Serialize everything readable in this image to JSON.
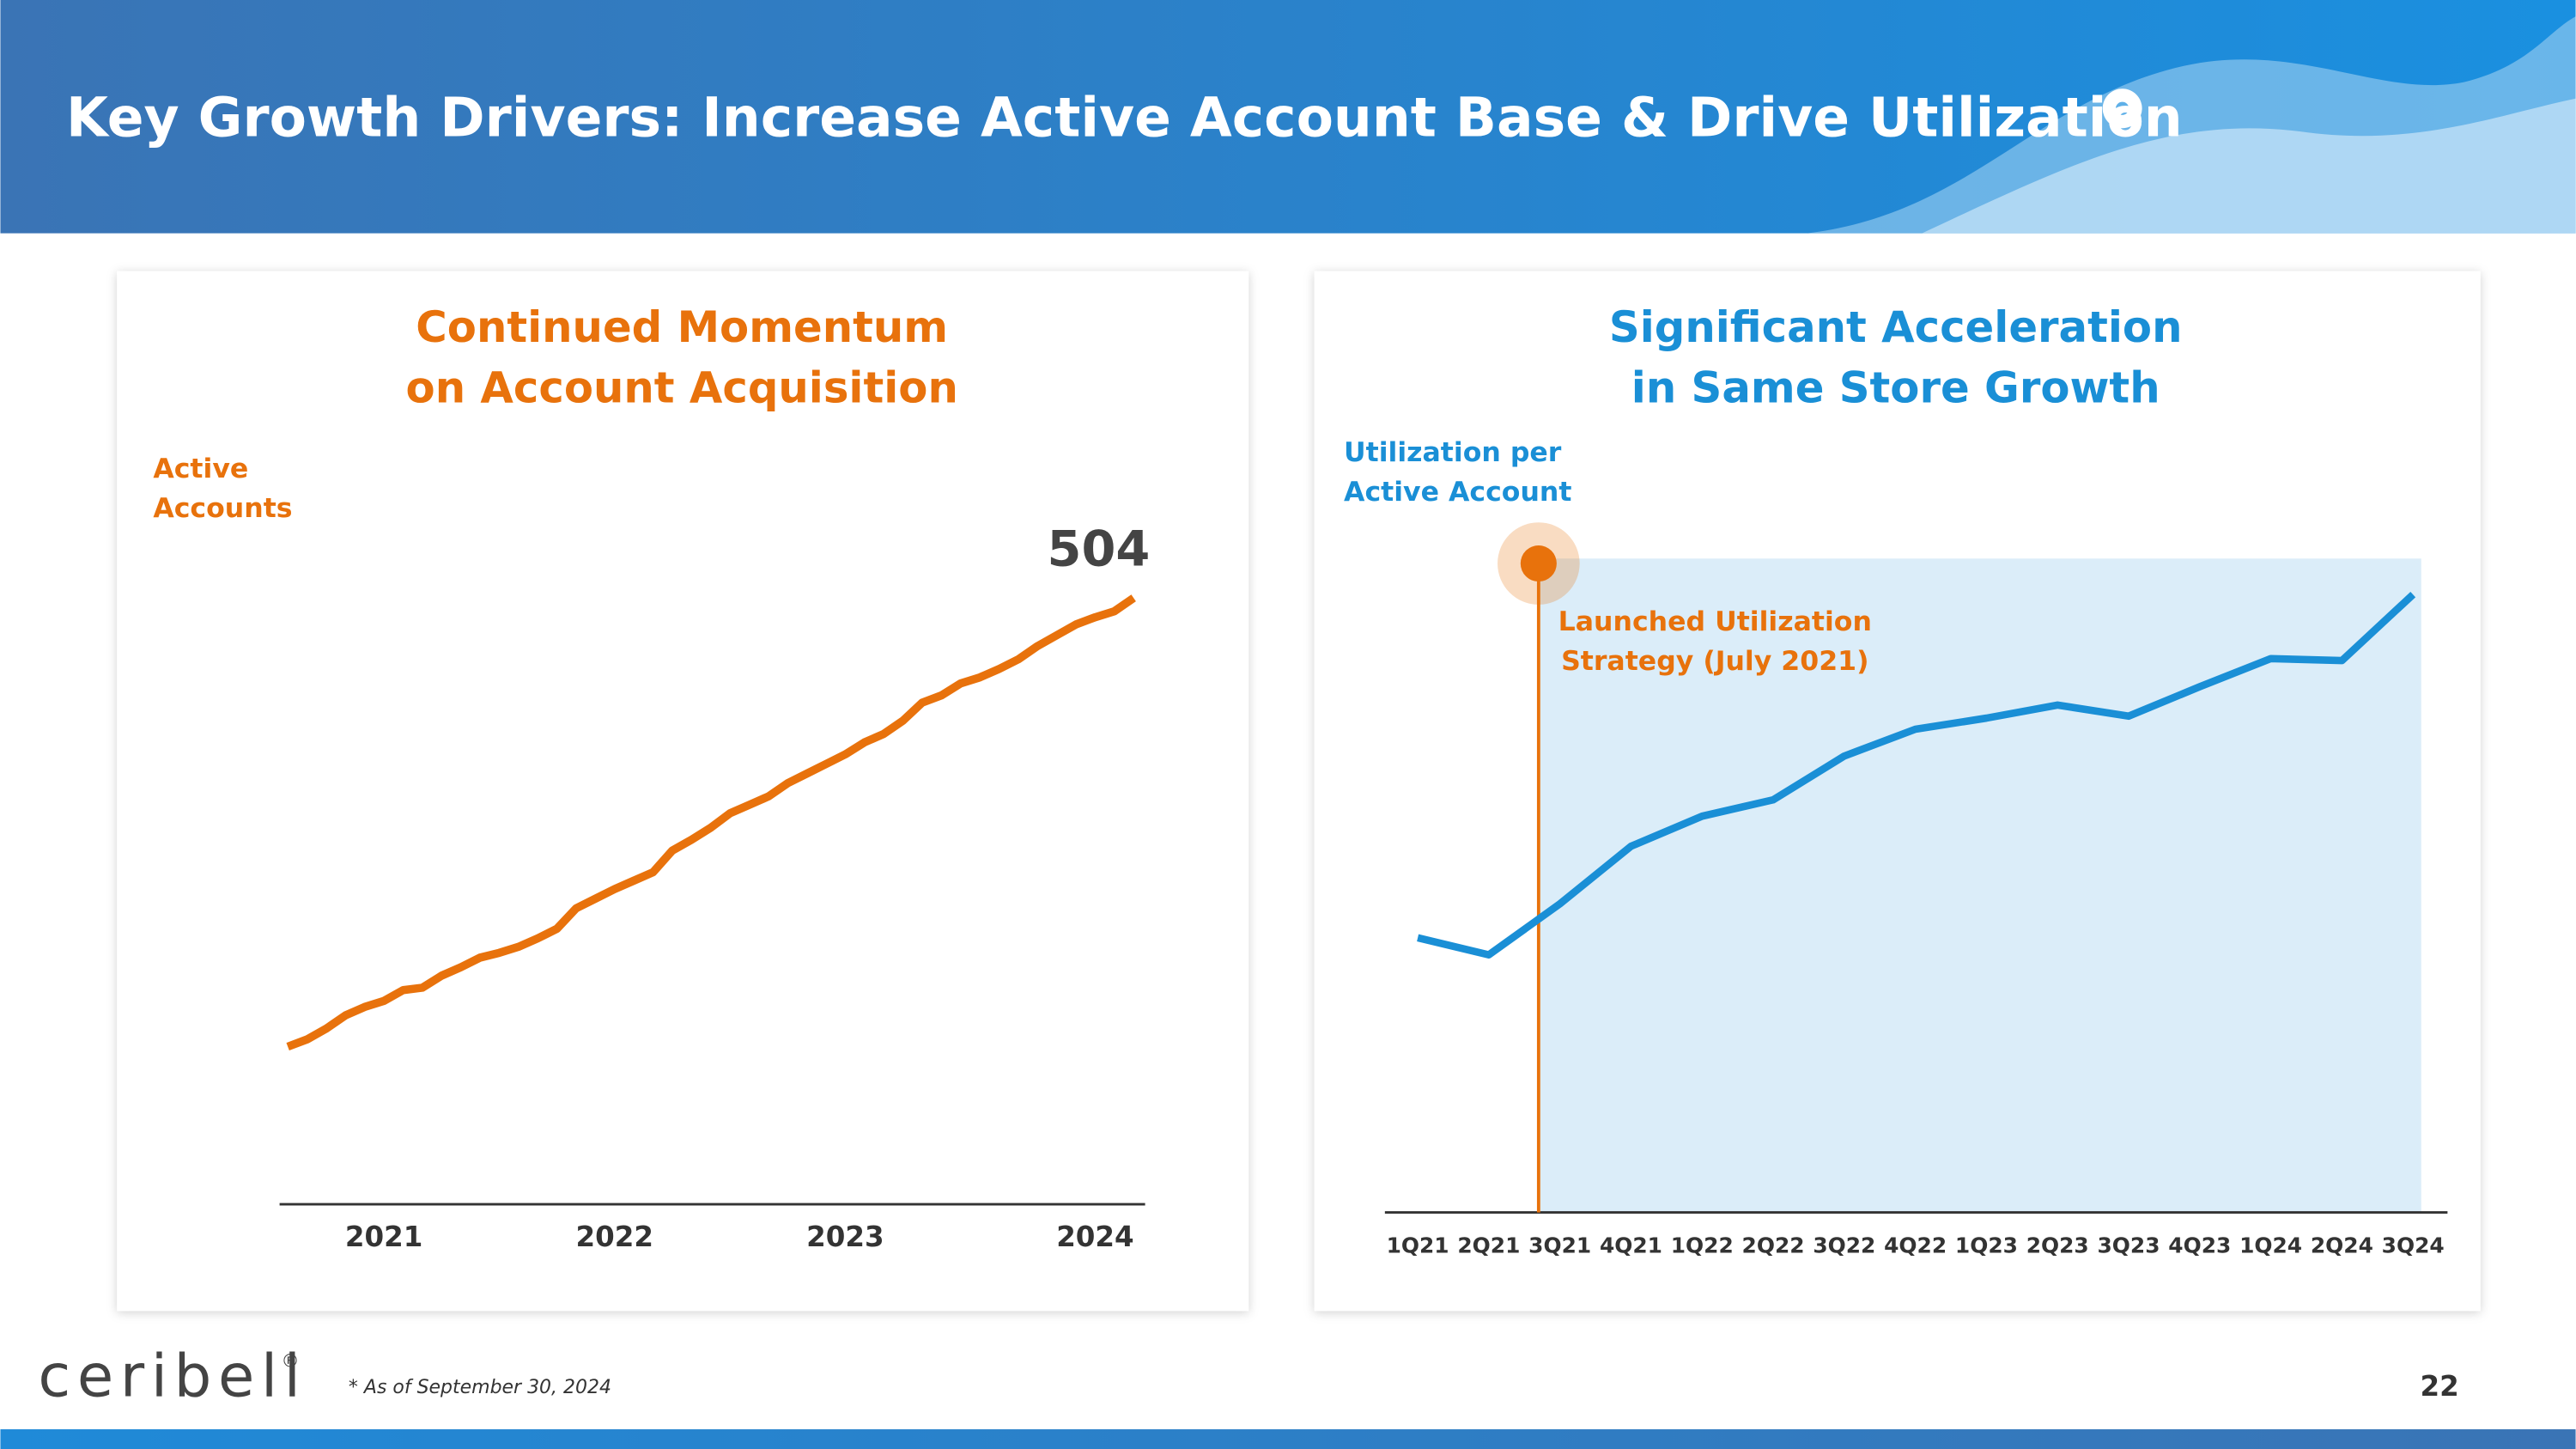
{
  "header": {
    "title": "Key Growth Drivers: Increase Active Account Base & Drive Utilization"
  },
  "chart_data": [
    {
      "type": "line",
      "title": [
        "Continued Momentum",
        "on Account Acquisition"
      ],
      "y_label": [
        "Active",
        "Accounts"
      ],
      "color": "#e8720c",
      "categories": [
        null,
        null,
        null,
        null,
        null,
        "2021",
        null,
        null,
        null,
        null,
        null,
        null,
        null,
        null,
        null,
        null,
        null,
        "2022",
        null,
        null,
        null,
        null,
        null,
        null,
        null,
        null,
        null,
        null,
        null,
        "2023",
        null,
        null,
        null,
        null,
        null,
        null,
        null,
        null,
        null,
        null,
        null,
        null,
        "2024",
        null,
        null
      ],
      "values": [
        131,
        137,
        146,
        157,
        164,
        169,
        178,
        180,
        190,
        197,
        205,
        209,
        214,
        221,
        229,
        246,
        254,
        262,
        269,
        276,
        294,
        303,
        313,
        325,
        332,
        339,
        350,
        358,
        366,
        374,
        384,
        391,
        402,
        417,
        423,
        433,
        438,
        445,
        453,
        464,
        473,
        482,
        488,
        493,
        504
      ],
      "ylim": [
        0,
        504
      ]
    },
    {
      "type": "line",
      "title": [
        "Significant Acceleration",
        "in Same Store Growth"
      ],
      "y_label": [
        "Utilization per",
        "Active Account"
      ],
      "annotation": [
        "Launched Utilization",
        "Strategy (July 2021)"
      ],
      "color": "#1a8fd6",
      "annotation_color": "#e8720c",
      "shade_color": "#dbedf9",
      "categories": [
        "1Q21",
        "2Q21",
        "3Q21",
        "4Q21",
        "1Q22",
        "2Q22",
        "3Q22",
        "4Q22",
        "1Q23",
        "2Q23",
        "3Q23",
        "4Q23",
        "1Q24",
        "2Q24",
        "3Q24"
      ],
      "values": [
        42,
        39.4,
        47.2,
        56,
        60.6,
        63.1,
        69.8,
        73.9,
        75.6,
        77.6,
        75.9,
        80.4,
        84.7,
        84.4,
        94.5
      ],
      "ylim": [
        0,
        100
      ]
    }
  ],
  "footer": {
    "logo": "ceribell",
    "logo_mark": "®",
    "footnote": "* As of September 30, 2024",
    "page": "22"
  }
}
